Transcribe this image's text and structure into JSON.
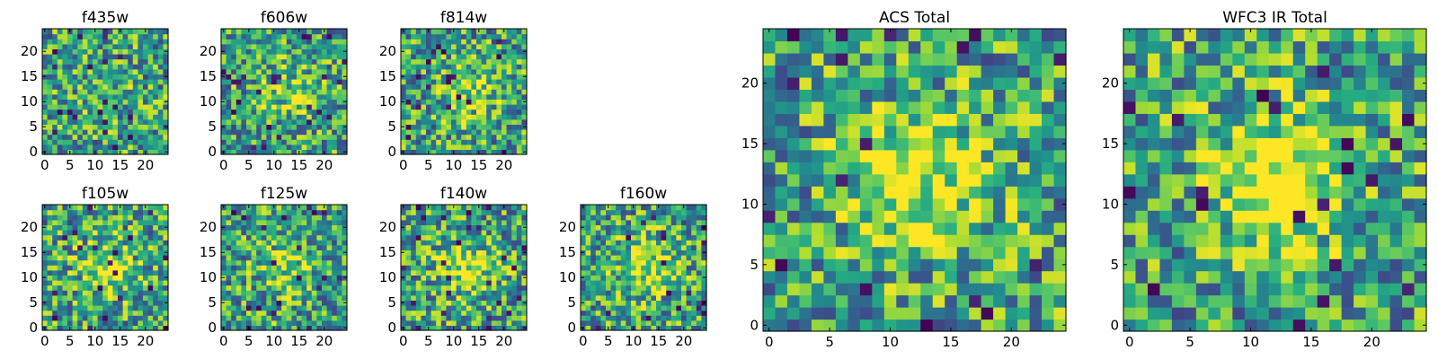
{
  "figure": {
    "panels": [
      {
        "id": "f435w",
        "title": "f435w",
        "xticks": [
          0,
          5,
          10,
          15,
          20
        ],
        "yticks": [
          0,
          5,
          10,
          15,
          20
        ],
        "seed": 11,
        "blob": 0.05
      },
      {
        "id": "f606w",
        "title": "f606w",
        "xticks": [
          0,
          5,
          10,
          15,
          20
        ],
        "yticks": [
          0,
          5,
          10,
          15,
          20
        ],
        "seed": 23,
        "blob": 0.22
      },
      {
        "id": "f814w",
        "title": "f814w",
        "xticks": [
          0,
          5,
          10,
          15,
          20
        ],
        "yticks": [
          0,
          5,
          10,
          15,
          20
        ],
        "seed": 37,
        "blob": 0.25
      },
      {
        "id": "f105w",
        "title": "f105w",
        "xticks": [
          0,
          5,
          10,
          15,
          20
        ],
        "yticks": [
          0,
          5,
          10,
          15,
          20
        ],
        "seed": 41,
        "blob": 0.3
      },
      {
        "id": "f125w",
        "title": "f125w",
        "xticks": [
          0,
          5,
          10,
          15,
          20
        ],
        "yticks": [
          0,
          5,
          10,
          15,
          20
        ],
        "seed": 53,
        "blob": 0.25
      },
      {
        "id": "f140w",
        "title": "f140w",
        "xticks": [
          0,
          5,
          10,
          15,
          20
        ],
        "yticks": [
          0,
          5,
          10,
          15,
          20
        ],
        "seed": 67,
        "blob": 0.35
      },
      {
        "id": "f160w",
        "title": "f160w",
        "xticks": [
          0,
          5,
          10,
          15,
          20
        ],
        "yticks": [
          0,
          5,
          10,
          15,
          20
        ],
        "seed": 79,
        "blob": 0.35
      },
      {
        "id": "acs-total",
        "title": "ACS Total",
        "xticks": [
          0,
          5,
          10,
          15,
          20
        ],
        "yticks": [
          0,
          5,
          10,
          15,
          20
        ],
        "seed": 97,
        "blob": 0.45
      },
      {
        "id": "wfc3-ir-total",
        "title": "WFC3 IR Total",
        "xticks": [
          0,
          5,
          10,
          15,
          20
        ],
        "yticks": [
          0,
          5,
          10,
          15,
          20
        ],
        "seed": 131,
        "blob": 0.55
      }
    ]
  },
  "chart_data": [
    {
      "type": "heatmap",
      "title": "f435w",
      "grid": [
        25,
        25
      ],
      "xlim": [
        -0.5,
        24.5
      ],
      "ylim": [
        -0.5,
        24.5
      ],
      "colormap": "viridis",
      "xlabel": "",
      "ylabel": ""
    },
    {
      "type": "heatmap",
      "title": "f606w",
      "grid": [
        25,
        25
      ],
      "xlim": [
        -0.5,
        24.5
      ],
      "ylim": [
        -0.5,
        24.5
      ],
      "colormap": "viridis",
      "xlabel": "",
      "ylabel": ""
    },
    {
      "type": "heatmap",
      "title": "f814w",
      "grid": [
        25,
        25
      ],
      "xlim": [
        -0.5,
        24.5
      ],
      "ylim": [
        -0.5,
        24.5
      ],
      "colormap": "viridis",
      "xlabel": "",
      "ylabel": ""
    },
    {
      "type": "heatmap",
      "title": "f105w",
      "grid": [
        25,
        25
      ],
      "xlim": [
        -0.5,
        24.5
      ],
      "ylim": [
        -0.5,
        24.5
      ],
      "colormap": "viridis",
      "xlabel": "",
      "ylabel": ""
    },
    {
      "type": "heatmap",
      "title": "f125w",
      "grid": [
        25,
        25
      ],
      "xlim": [
        -0.5,
        24.5
      ],
      "ylim": [
        -0.5,
        24.5
      ],
      "colormap": "viridis",
      "xlabel": "",
      "ylabel": ""
    },
    {
      "type": "heatmap",
      "title": "f140w",
      "grid": [
        25,
        25
      ],
      "xlim": [
        -0.5,
        24.5
      ],
      "ylim": [
        -0.5,
        24.5
      ],
      "colormap": "viridis",
      "xlabel": "",
      "ylabel": ""
    },
    {
      "type": "heatmap",
      "title": "f160w",
      "grid": [
        25,
        25
      ],
      "xlim": [
        -0.5,
        24.5
      ],
      "ylim": [
        -0.5,
        24.5
      ],
      "colormap": "viridis",
      "xlabel": "",
      "ylabel": ""
    },
    {
      "type": "heatmap",
      "title": "ACS Total",
      "grid": [
        25,
        25
      ],
      "xlim": [
        -0.5,
        24.5
      ],
      "ylim": [
        -0.5,
        24.5
      ],
      "colormap": "viridis",
      "xlabel": "",
      "ylabel": ""
    },
    {
      "type": "heatmap",
      "title": "WFC3 IR Total",
      "grid": [
        25,
        25
      ],
      "xlim": [
        -0.5,
        24.5
      ],
      "ylim": [
        -0.5,
        24.5
      ],
      "colormap": "viridis",
      "xlabel": "",
      "ylabel": ""
    }
  ],
  "colors": {
    "viridis_dark": "#440154",
    "viridis_blue": "#31688e",
    "viridis_teal": "#21918c",
    "viridis_green": "#35b779",
    "viridis_yellow": "#fde725"
  }
}
